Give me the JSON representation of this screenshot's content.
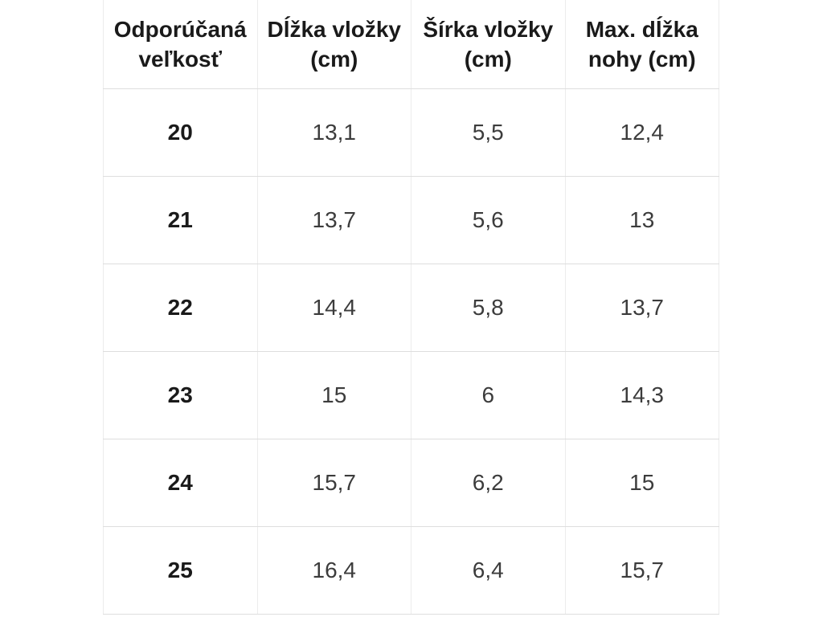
{
  "chart_data": {
    "type": "table",
    "title": "",
    "columns": [
      "Odporúčaná veľkosť",
      "Dĺžka vložky (cm)",
      "Šírka vložky (cm)",
      "Max. dĺžka nohy (cm)"
    ],
    "rows": [
      [
        "20",
        "13,1",
        "5,5",
        "12,4"
      ],
      [
        "21",
        "13,7",
        "5,6",
        "13"
      ],
      [
        "22",
        "14,4",
        "5,8",
        "13,7"
      ],
      [
        "23",
        "15",
        "6",
        "14,3"
      ],
      [
        "24",
        "15,7",
        "6,2",
        "15"
      ],
      [
        "25",
        "16,4",
        "6,4",
        "15,7"
      ]
    ]
  },
  "header_display": [
    {
      "line1": "Odporúčaná",
      "line2": "veľkosť"
    },
    {
      "line1": "Dĺžka vložky",
      "line2": "(cm)"
    },
    {
      "line1": "Šírka vložky",
      "line2": "(cm)"
    },
    {
      "line1": "Max. dĺžka",
      "line2": "nohy (cm)"
    }
  ],
  "colors": {
    "background": "#ffffff",
    "border_horizontal": "#dedede",
    "border_vertical": "#ececec",
    "header_text": "#1a1a1a",
    "cell_text": "#3c3c3c"
  }
}
